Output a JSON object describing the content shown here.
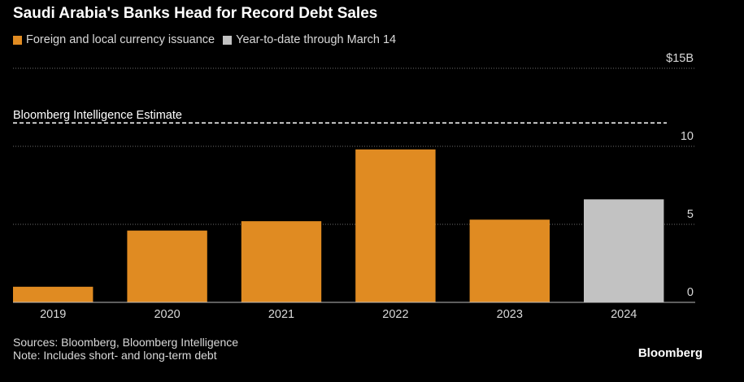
{
  "title": "Saudi Arabia's Banks Head for Record Debt Sales",
  "legend": [
    {
      "label": "Foreign and local currency issuance",
      "color": "#e08b22"
    },
    {
      "label": "Year-to-date through March 14",
      "color": "#c2c2c2"
    }
  ],
  "footnotes": {
    "sources": "Sources: Bloomberg, Bloomberg Intelligence",
    "note": "Note: Includes short- and long-term debt"
  },
  "brand": "Bloomberg",
  "chart_data": {
    "type": "bar",
    "categories": [
      "2019",
      "2020",
      "2021",
      "2022",
      "2023",
      "2024"
    ],
    "values": [
      1.0,
      4.6,
      5.2,
      9.8,
      5.3,
      6.6
    ],
    "bar_colors": [
      "#e08b22",
      "#e08b22",
      "#e08b22",
      "#e08b22",
      "#e08b22",
      "#c2c2c2"
    ],
    "ylim": [
      0,
      15
    ],
    "yticks": [
      0,
      5,
      10,
      15
    ],
    "ytick_labels": [
      "0",
      "5",
      "10",
      "$15B"
    ],
    "grid": true,
    "annotation": {
      "label": "Bloomberg Intelligence Estimate",
      "value": 11.5
    }
  }
}
